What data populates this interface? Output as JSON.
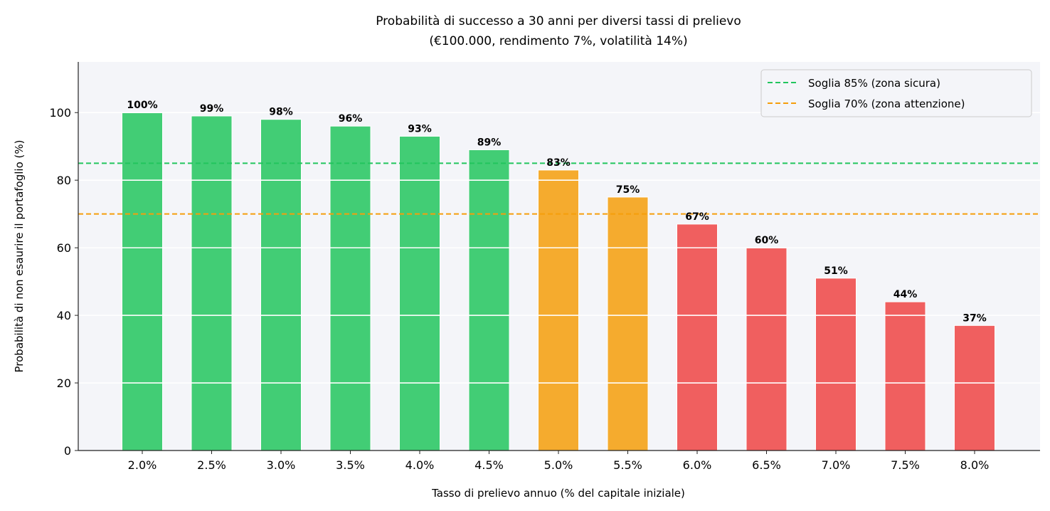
{
  "chart_data": {
    "type": "bar",
    "title": "Probabilità di successo a 30 anni per diversi tassi di prelievo",
    "subtitle": "(€100.000, rendimento 7%, volatilità 14%)",
    "xlabel": "Tasso di prelievo annuo (% del capitale iniziale)",
    "ylabel": "Probabilità di non esaurire il portafoglio (%)",
    "categories": [
      "2.0%",
      "2.5%",
      "3.0%",
      "3.5%",
      "4.0%",
      "4.5%",
      "5.0%",
      "5.5%",
      "6.0%",
      "6.5%",
      "7.0%",
      "7.5%",
      "8.0%"
    ],
    "values": [
      100,
      99,
      98,
      96,
      93,
      89,
      83,
      75,
      67,
      60,
      51,
      44,
      37
    ],
    "data_labels": [
      "100%",
      "99%",
      "98%",
      "96%",
      "93%",
      "89%",
      "83%",
      "75%",
      "67%",
      "60%",
      "51%",
      "44%",
      "37%"
    ],
    "bar_zone": [
      "safe",
      "safe",
      "safe",
      "safe",
      "safe",
      "safe",
      "warning",
      "warning",
      "danger",
      "danger",
      "danger",
      "danger",
      "danger"
    ],
    "zone_colors": {
      "safe": "#22c55e",
      "warning": "#f59e0b",
      "danger": "#ef4444"
    },
    "ylim": [
      0,
      115
    ],
    "yticks": [
      0,
      20,
      40,
      60,
      80,
      100
    ],
    "grid": "y",
    "background": "#f4f5f9",
    "reference_lines": [
      {
        "value": 85,
        "label": "Soglia 85% (zona sicura)",
        "color": "#22c55e",
        "style": "dashed"
      },
      {
        "value": 70,
        "label": "Soglia 70% (zona attenzione)",
        "color": "#f59e0b",
        "style": "dashed"
      }
    ],
    "legend": "top-right"
  }
}
